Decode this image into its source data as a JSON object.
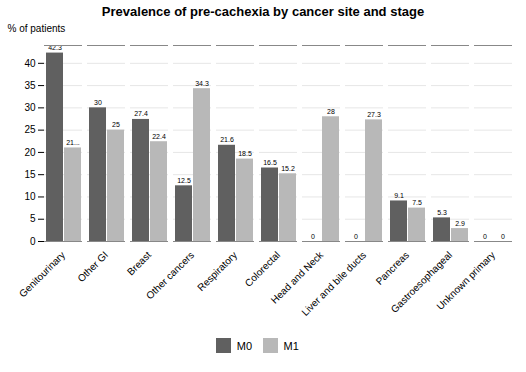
{
  "chart_data": {
    "type": "bar",
    "title": "Prevalence of pre-cachexia by cancer site and stage",
    "ylabel": "% of patients",
    "categories": [
      "Genitourinary",
      "Other GI",
      "Breast",
      "Other cancers",
      "Respiratory",
      "Colorectal",
      "Head and Neck",
      "Liver and bile ducts",
      "Pancreas",
      "Gastroesophageal",
      "Unknown primary"
    ],
    "series": [
      {
        "name": "M0",
        "color": "#606060",
        "values": [
          42.3,
          30.0,
          27.4,
          12.5,
          21.6,
          16.5,
          0.0,
          0.0,
          9.1,
          5.3,
          0.0
        ],
        "value_labels": [
          "42.3",
          "30",
          "27.4",
          "12.5",
          "21.6",
          "16.5",
          "0",
          "0",
          "9.1",
          "5.3",
          "0"
        ]
      },
      {
        "name": "M1",
        "color": "#b8b8b8",
        "values": [
          21.0,
          25.0,
          22.4,
          34.3,
          18.5,
          15.2,
          28.0,
          27.3,
          7.5,
          2.9,
          0.0
        ],
        "value_labels": [
          "21...",
          "25",
          "22.4",
          "34.3",
          "18.5",
          "15.2",
          "28",
          "27.3",
          "7.5",
          "2.9",
          "0"
        ]
      }
    ],
    "ylim": [
      0,
      44
    ],
    "yticks": [
      0,
      5,
      10,
      15,
      20,
      25,
      30,
      35,
      40
    ],
    "grid": true,
    "legend": "bottom",
    "data_labels": true
  }
}
